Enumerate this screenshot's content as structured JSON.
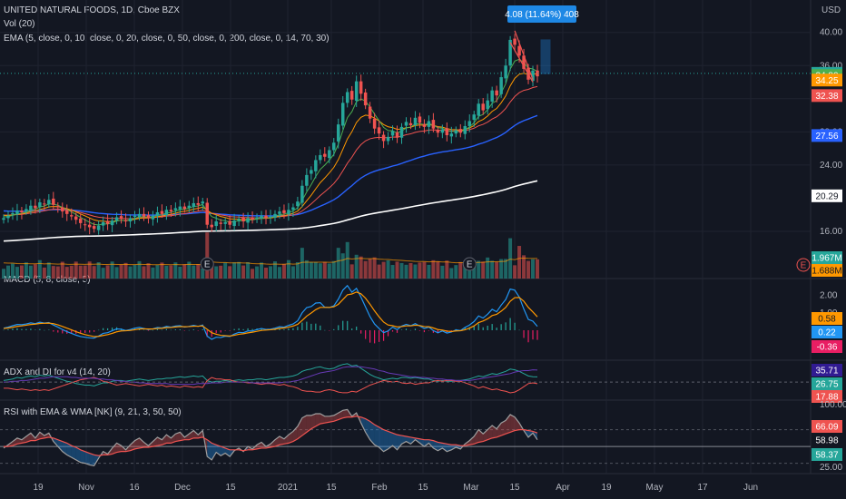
{
  "header": {
    "title": "UNITED NATURAL FOODS, 1D, Cboe BZX",
    "vol": "Vol (20)",
    "ema": "EMA (5, close, 0, 10, close, 0, 20, close, 0, 50, close, 0, 200, close, 0, 14, 70, 30)",
    "currency": "USD"
  },
  "panes": {
    "macd_title": "MACD (5, 8, close, 5)",
    "adx_title": "ADX and DI for v4 (14, 20)",
    "rsi_title": "RSI with EMA & WMA [NK] (9, 21, 3, 50, 50)"
  },
  "measure_label": "4.08 (11.64%) 408",
  "earnings_marker": "E",
  "colors": {
    "background": "#131722",
    "up": "#26a69a",
    "down": "#ef5350",
    "ema5": "#4caf50",
    "ema10": "#ff9800",
    "ema20": "#ef5350",
    "ema50": "#2962ff",
    "ema200": "#ffffff",
    "macd": "#2196f3",
    "signal": "#ff9800",
    "measure": "#1e88e5"
  },
  "chart_data": [
    {
      "type": "candlestick",
      "title": "UNITED NATURAL FOODS, 1D, Cboe BZX",
      "xlabel": "",
      "ylabel": "USD",
      "x_ticks": [
        "19",
        "Nov",
        "16",
        "Dec",
        "15",
        "2021",
        "15",
        "Feb",
        "15",
        "Mar",
        "15",
        "Apr",
        "19",
        "May",
        "17",
        "Jun"
      ],
      "y_ticks": [
        "16.00",
        "24.00",
        "28.00",
        "32.00",
        "36.00",
        "40.00"
      ],
      "ylim": [
        12.5,
        41.5
      ],
      "close": [
        17.6,
        17.9,
        18.2,
        18.5,
        18.3,
        18.7,
        19.1,
        18.8,
        19.5,
        19.3,
        19.8,
        19.2,
        18.9,
        18.4,
        18.1,
        17.8,
        17.4,
        17.0,
        16.8,
        16.5,
        16.3,
        16.7,
        17.1,
        16.9,
        17.3,
        17.7,
        17.5,
        17.2,
        17.6,
        17.9,
        18.1,
        17.8,
        17.6,
        17.9,
        18.3,
        18.1,
        18.6,
        18.4,
        18.8,
        19.0,
        18.7,
        19.1,
        19.4,
        19.2,
        19.6,
        16.8,
        16.5,
        17.2,
        16.9,
        17.1,
        16.8,
        17.3,
        17.5,
        17.2,
        17.6,
        17.4,
        17.7,
        17.9,
        17.6,
        17.8,
        18.1,
        18.4,
        18.2,
        18.6,
        18.9,
        19.6,
        21.5,
        22.8,
        23.4,
        24.6,
        25.2,
        25.0,
        25.8,
        26.7,
        28.9,
        31.5,
        32.8,
        31.9,
        34.1,
        32.6,
        31.2,
        29.6,
        28.4,
        27.8,
        26.9,
        27.4,
        28.1,
        27.3,
        28.6,
        29.2,
        28.8,
        29.7,
        29.1,
        28.6,
        29.3,
        28.4,
        27.9,
        28.3,
        27.6,
        27.8,
        28.2,
        27.9,
        28.7,
        29.3,
        30.1,
        31.4,
        30.6,
        31.8,
        33.0,
        32.4,
        34.6,
        36.0,
        39.1,
        38.5,
        37.2,
        35.6,
        34.3,
        35.4,
        34.7
      ],
      "volume_label": "1.967M",
      "volume_avg_label": "1.688M",
      "price_labels": [
        "35.06",
        "34.80",
        "34.25",
        "32.38",
        "27.56",
        "20.29"
      ]
    },
    {
      "type": "line",
      "title": "MACD (5, 8, close, 5)",
      "y_ticks": [
        "1.00",
        "2.00"
      ],
      "ylim": [
        -1.3,
        2.6
      ],
      "series": [
        {
          "name": "MACD",
          "values": [
            0.12,
            0.18,
            0.26,
            0.33,
            0.32,
            0.36,
            0.42,
            0.38,
            0.46,
            0.41,
            0.44,
            0.3,
            0.18,
            0.04,
            -0.08,
            -0.18,
            -0.28,
            -0.36,
            -0.4,
            -0.44,
            -0.45,
            -0.33,
            -0.18,
            -0.14,
            -0.03,
            0.08,
            0.06,
            -0.02,
            0.04,
            0.12,
            0.16,
            0.1,
            0.04,
            0.08,
            0.16,
            0.13,
            0.22,
            0.18,
            0.24,
            0.26,
            0.18,
            0.22,
            0.28,
            0.22,
            0.3,
            -0.34,
            -0.52,
            -0.4,
            -0.42,
            -0.34,
            -0.36,
            -0.22,
            -0.12,
            -0.14,
            -0.04,
            -0.04,
            0.04,
            0.1,
            0.05,
            0.06,
            0.12,
            0.2,
            0.18,
            0.28,
            0.36,
            0.54,
            1.0,
            1.3,
            1.36,
            1.56,
            1.58,
            1.32,
            1.3,
            1.4,
            1.78,
            2.3,
            2.56,
            2.18,
            2.4,
            1.9,
            1.34,
            0.78,
            0.36,
            0.1,
            -0.14,
            -0.04,
            0.18,
            0.04,
            0.24,
            0.34,
            0.26,
            0.38,
            0.24,
            0.1,
            0.18,
            -0.02,
            -0.14,
            -0.04,
            -0.16,
            -0.1,
            0.02,
            -0.02,
            0.16,
            0.3,
            0.5,
            0.82,
            0.7,
            0.92,
            1.2,
            1.06,
            1.44,
            1.76,
            2.36,
            2.3,
            1.9,
            1.22,
            0.62,
            0.52,
            0.22
          ]
        },
        {
          "name": "Signal",
          "values": [
            0.1,
            0.13,
            0.17,
            0.22,
            0.25,
            0.29,
            0.33,
            0.35,
            0.39,
            0.4,
            0.41,
            0.38,
            0.31,
            0.22,
            0.12,
            0.02,
            -0.08,
            -0.17,
            -0.25,
            -0.31,
            -0.36,
            -0.35,
            -0.3,
            -0.25,
            -0.18,
            -0.09,
            -0.04,
            -0.03,
            -0.01,
            0.03,
            0.07,
            0.08,
            0.07,
            0.07,
            0.1,
            0.11,
            0.15,
            0.16,
            0.19,
            0.21,
            0.2,
            0.21,
            0.23,
            0.23,
            0.25,
            0.05,
            -0.14,
            -0.23,
            -0.29,
            -0.31,
            -0.33,
            -0.29,
            -0.23,
            -0.2,
            -0.15,
            -0.11,
            -0.06,
            -0.01,
            0.01,
            0.03,
            0.06,
            0.11,
            0.13,
            0.18,
            0.24,
            0.34,
            0.56,
            0.81,
            0.99,
            1.18,
            1.31,
            1.31,
            1.31,
            1.34,
            1.49,
            1.76,
            2.03,
            2.08,
            2.19,
            2.09,
            1.84,
            1.49,
            1.11,
            0.77,
            0.47,
            0.3,
            0.26,
            0.19,
            0.21,
            0.25,
            0.25,
            0.29,
            0.27,
            0.21,
            0.2,
            0.13,
            0.04,
            0.01,
            -0.05,
            -0.07,
            -0.04,
            -0.03,
            0.03,
            0.12,
            0.25,
            0.44,
            0.53,
            0.66,
            0.84,
            0.91,
            1.09,
            1.31,
            1.66,
            1.87,
            1.88,
            1.66,
            1.31,
            1.05,
            0.77
          ]
        }
      ],
      "value_labels": [
        "0.58",
        "0.22",
        "-0.36"
      ]
    },
    {
      "type": "line",
      "title": "ADX and DI for v4 (14, 20)",
      "ylim": [
        0,
        45
      ],
      "series": [
        {
          "values": [
            22,
            23,
            24,
            26,
            25,
            27,
            28,
            27,
            29,
            28,
            29,
            27,
            25,
            23,
            21,
            20,
            18,
            17,
            16,
            16,
            15,
            17,
            19,
            19,
            21,
            22,
            22,
            21,
            22,
            23,
            24,
            23,
            22,
            23,
            24,
            24,
            25,
            25,
            26,
            27,
            26,
            27,
            28,
            27,
            28,
            22,
            20,
            21,
            21,
            22,
            21,
            22,
            23,
            22,
            23,
            23,
            24,
            24,
            23,
            24,
            25,
            26,
            26,
            27,
            28,
            30,
            34,
            36,
            37,
            39,
            40,
            38,
            37,
            38,
            41,
            43,
            44,
            41,
            42,
            38,
            34,
            30,
            27,
            25,
            23,
            24,
            25,
            24,
            26,
            26,
            25,
            26,
            25,
            24,
            24,
            22,
            21,
            22,
            21,
            21,
            22,
            22,
            23,
            24,
            26,
            28,
            27,
            29,
            31,
            30,
            32,
            34,
            37,
            36,
            34,
            31,
            28,
            27,
            26.75
          ]
        },
        {
          "values": [
            12,
            12,
            11,
            10,
            11,
            10,
            9,
            10,
            9,
            10,
            9,
            11,
            13,
            15,
            17,
            19,
            21,
            23,
            24,
            25,
            26,
            24,
            21,
            20,
            18,
            16,
            17,
            18,
            17,
            16,
            15,
            16,
            17,
            16,
            15,
            16,
            14,
            15,
            14,
            13,
            15,
            14,
            13,
            14,
            13,
            22,
            26,
            24,
            24,
            23,
            23,
            21,
            20,
            20,
            19,
            19,
            18,
            17,
            18,
            18,
            17,
            16,
            17,
            15,
            14,
            12,
            9,
            8,
            8,
            7,
            7,
            9,
            10,
            9,
            7,
            6,
            6,
            8,
            7,
            10,
            13,
            16,
            18,
            20,
            22,
            21,
            20,
            21,
            19,
            18,
            19,
            17,
            18,
            19,
            19,
            21,
            22,
            21,
            22,
            22,
            21,
            21,
            19,
            17,
            15,
            12,
            14,
            12,
            10,
            11,
            9,
            8,
            6,
            7,
            10,
            14,
            18,
            19,
            17.88
          ]
        },
        {
          "values": [
            20,
            20,
            21,
            21,
            22,
            22,
            23,
            24,
            25,
            25,
            26,
            27,
            27,
            27,
            27,
            26,
            26,
            25,
            25,
            25,
            25,
            24,
            24,
            23,
            23,
            22,
            21,
            21,
            20,
            20,
            19,
            19,
            18,
            18,
            18,
            18,
            18,
            17,
            17,
            17,
            17,
            17,
            17,
            18,
            18,
            18,
            19,
            19,
            19,
            20,
            20,
            20,
            20,
            20,
            20,
            19,
            19,
            19,
            19,
            19,
            19,
            19,
            20,
            20,
            21,
            22,
            24,
            26,
            28,
            30,
            32,
            33,
            34,
            35,
            37,
            39,
            40,
            40,
            40,
            40,
            39,
            38,
            37,
            35,
            34,
            32,
            31,
            30,
            29,
            28,
            27,
            27,
            26,
            26,
            25,
            25,
            24,
            24,
            23,
            23,
            22,
            22,
            22,
            22,
            23,
            24,
            25,
            26,
            27,
            28,
            29,
            30,
            31,
            33,
            34,
            35,
            35,
            36,
            35.71
          ]
        }
      ],
      "value_labels": [
        "35.71",
        "26.75",
        "17.88"
      ]
    },
    {
      "type": "area",
      "title": "RSI with EMA & WMA [NK] (9, 21, 3, 50, 50)",
      "y_ticks": [
        "25.00",
        "100.00"
      ],
      "ylim": [
        22,
        102
      ],
      "series": [
        {
          "name": "RSI",
          "values": [
            48,
            52,
            56,
            60,
            58,
            62,
            66,
            60,
            67,
            63,
            66,
            56,
            50,
            44,
            40,
            37,
            34,
            31,
            30,
            28,
            27,
            36,
            44,
            41,
            48,
            54,
            51,
            46,
            52,
            57,
            60,
            55,
            51,
            56,
            61,
            58,
            64,
            60,
            65,
            67,
            61,
            65,
            69,
            64,
            69,
            38,
            34,
            43,
            39,
            42,
            38,
            45,
            48,
            44,
            50,
            47,
            52,
            55,
            50,
            53,
            58,
            62,
            59,
            64,
            68,
            74,
            84,
            87,
            87,
            89,
            89,
            86,
            86,
            87,
            90,
            93,
            94,
            86,
            90,
            78,
            67,
            58,
            52,
            49,
            44,
            47,
            51,
            46,
            53,
            56,
            53,
            58,
            54,
            50,
            54,
            48,
            45,
            48,
            44,
            46,
            49,
            47,
            53,
            57,
            62,
            70,
            65,
            70,
            75,
            71,
            78,
            81,
            88,
            85,
            78,
            69,
            61,
            66,
            58
          ]
        },
        {
          "name": "EMA",
          "values": [
            50,
            50,
            51,
            53,
            54,
            55,
            57,
            57,
            59,
            60,
            61,
            60,
            58,
            56,
            54,
            51,
            49,
            46,
            44,
            42,
            40,
            39,
            40,
            40,
            41,
            43,
            44,
            44,
            45,
            47,
            48,
            49,
            49,
            50,
            51,
            52,
            54,
            54,
            56,
            57,
            58,
            58,
            60,
            60,
            61,
            58,
            54,
            52,
            50,
            48,
            46,
            46,
            46,
            45,
            46,
            46,
            47,
            48,
            48,
            49,
            50,
            52,
            53,
            54,
            56,
            59,
            63,
            67,
            71,
            74,
            77,
            78,
            79,
            80,
            82,
            84,
            85,
            85,
            86,
            85,
            83,
            80,
            76,
            73,
            70,
            68,
            66,
            64,
            63,
            62,
            61,
            60,
            59,
            58,
            58,
            57,
            55,
            54,
            53,
            52,
            52,
            51,
            51,
            52,
            53,
            55,
            56,
            58,
            60,
            61,
            63,
            65,
            67,
            69,
            70,
            70,
            69,
            68,
            66.09
          ]
        }
      ],
      "value_labels": [
        "66.09",
        "58.98",
        "58.37"
      ]
    }
  ]
}
